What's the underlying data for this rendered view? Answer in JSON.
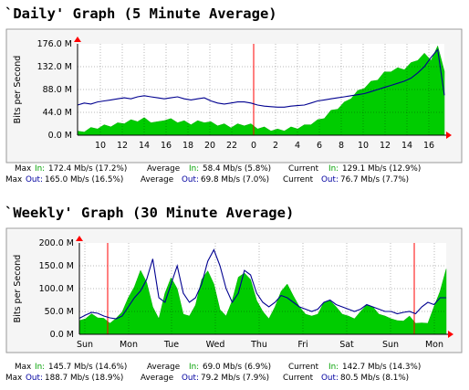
{
  "colors": {
    "in": "#00cc00",
    "out": "#000090",
    "grid": "#ff0000",
    "frame_bg": "#f5f5f5",
    "plot_bg": "#ffffff",
    "arrow": "#ff0000"
  },
  "chart_data": [
    {
      "type": "area",
      "title": "`Daily' Graph (5 Minute Average)",
      "ylabel": "Bits per Second",
      "xlabel": "",
      "ytick_labels": [
        "176.0 M",
        "132.0 M",
        "88.0 M",
        "44.0 M",
        "0.0 M"
      ],
      "ylim": [
        0,
        176
      ],
      "xtick_labels": [
        "10",
        "12",
        "14",
        "16",
        "18",
        "20",
        "22",
        "0",
        "2",
        "4",
        "6",
        "8",
        "10",
        "12",
        "14",
        "16"
      ],
      "grid": true,
      "series": [
        {
          "name": "In",
          "type": "area",
          "color": "#00cc00",
          "values": [
            8,
            12,
            15,
            18,
            20,
            22,
            24,
            28,
            30,
            32,
            34,
            30,
            26,
            34,
            32,
            30,
            28,
            26,
            28,
            30,
            26,
            24,
            22,
            20,
            22,
            24,
            22,
            18,
            16,
            14,
            12,
            14,
            16,
            18,
            20,
            26,
            30,
            38,
            48,
            56,
            64,
            76,
            86,
            96,
            104,
            112,
            122,
            128,
            130,
            132,
            140,
            150,
            158,
            150,
            172,
            129
          ]
        },
        {
          "name": "Out",
          "type": "line",
          "color": "#000090",
          "values": [
            58,
            62,
            60,
            64,
            66,
            68,
            70,
            72,
            70,
            74,
            76,
            74,
            72,
            70,
            72,
            74,
            70,
            68,
            70,
            72,
            66,
            62,
            60,
            62,
            64,
            64,
            62,
            58,
            56,
            55,
            54,
            54,
            56,
            57,
            58,
            62,
            66,
            68,
            70,
            72,
            74,
            76,
            78,
            80,
            84,
            88,
            92,
            96,
            100,
            104,
            110,
            120,
            132,
            150,
            165,
            77
          ]
        }
      ],
      "legend": {
        "max_in": "172.4 Mb/s (17.2%)",
        "avg_in": "58.4 Mb/s (5.8%)",
        "cur_in": "129.1 Mb/s (12.9%)",
        "max_out": "165.0 Mb/s (16.5%)",
        "avg_out": "69.8 Mb/s (7.0%)",
        "cur_out": "76.7 Mb/s (7.7%)"
      }
    },
    {
      "type": "area",
      "title": "`Weekly' Graph (30 Minute Average)",
      "ylabel": "Bits per Second",
      "xlabel": "",
      "ytick_labels": [
        "200.0 M",
        "150.0 M",
        "100.0 M",
        "50.0 M",
        "0.0 M"
      ],
      "ylim": [
        0,
        200
      ],
      "xtick_labels": [
        "Sun",
        "Mon",
        "Tue",
        "Wed",
        "Thu",
        "Fri",
        "Sat",
        "Sun",
        "Mon"
      ],
      "grid": true,
      "series": [
        {
          "name": "In",
          "type": "area",
          "color": "#00cc00",
          "values": [
            30,
            40,
            45,
            42,
            35,
            30,
            35,
            55,
            80,
            110,
            140,
            120,
            60,
            40,
            90,
            130,
            100,
            50,
            40,
            70,
            120,
            145,
            110,
            60,
            40,
            80,
            125,
            140,
            120,
            80,
            50,
            40,
            60,
            100,
            110,
            90,
            60,
            50,
            40,
            50,
            70,
            80,
            60,
            50,
            40,
            40,
            50,
            70,
            60,
            50,
            40,
            40,
            30,
            35,
            40,
            30,
            25,
            30,
            60,
            100,
            143
          ]
        },
        {
          "name": "Out",
          "type": "line",
          "color": "#000090",
          "values": [
            35,
            42,
            48,
            46,
            40,
            36,
            34,
            40,
            60,
            80,
            95,
            120,
            165,
            80,
            70,
            110,
            150,
            90,
            70,
            80,
            110,
            160,
            185,
            150,
            100,
            70,
            90,
            140,
            130,
            90,
            70,
            60,
            70,
            85,
            80,
            70,
            60,
            55,
            50,
            55,
            70,
            75,
            65,
            60,
            55,
            50,
            55,
            65,
            60,
            55,
            50,
            50,
            45,
            48,
            50,
            45,
            60,
            70,
            65,
            80,
            80
          ]
        }
      ],
      "legend": {
        "max_in": "145.7 Mb/s (14.6%)",
        "avg_in": "69.0 Mb/s (6.9%)",
        "cur_in": "142.7 Mb/s (14.3%)",
        "max_out": "188.7 Mb/s (18.9%)",
        "avg_out": "79.2 Mb/s (7.9%)",
        "cur_out": "80.5 Mb/s (8.1%)"
      }
    }
  ],
  "legend_labels": {
    "max": "Max",
    "average": "Average",
    "current": "Current",
    "in": "In:",
    "out": "Out:"
  }
}
